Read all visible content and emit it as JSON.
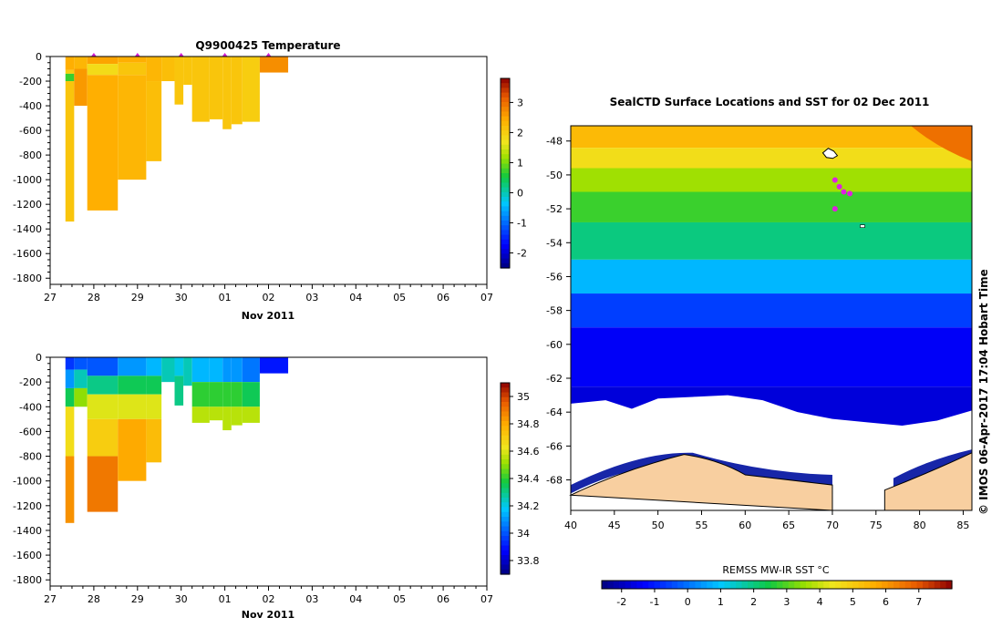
{
  "chart_data": [
    {
      "type": "heatmap",
      "title": "Q9900425  Temperature",
      "xlabel": "Nov 2011",
      "ylabel": "",
      "x_tick_labels": [
        "27",
        "28",
        "29",
        "30",
        "01",
        "02",
        "03",
        "04",
        "05",
        "06",
        "07"
      ],
      "y_tick_values": [
        0,
        -200,
        -400,
        -600,
        -800,
        -1000,
        -1200,
        -1400,
        -1600,
        -1800
      ],
      "xlim_days": [
        0,
        10
      ],
      "ylim": [
        -1850,
        0
      ],
      "colorbar": {
        "ticks": [
          3,
          2,
          1,
          0,
          -1,
          -2
        ],
        "range": [
          -2.5,
          3.8
        ]
      },
      "profile_markers_days": [
        1.0,
        2.0,
        3.0,
        4.0,
        5.0
      ],
      "columns": [
        {
          "x0": 0.35,
          "x1": 0.55,
          "bottom": -1340,
          "bands": [
            [
              0,
              -110,
              2.4
            ],
            [
              -110,
              -140,
              2.0
            ],
            [
              -140,
              -200,
              0.7
            ],
            [
              -200,
              -1340,
              2.1
            ]
          ]
        },
        {
          "x0": 0.55,
          "x1": 0.85,
          "bottom": -400,
          "bands": [
            [
              0,
              -100,
              2.3
            ],
            [
              -100,
              -400,
              2.6
            ]
          ]
        },
        {
          "x0": 0.85,
          "x1": 1.55,
          "bottom": -1250,
          "bands": [
            [
              0,
              -60,
              2.5
            ],
            [
              -60,
              -150,
              1.8
            ],
            [
              -150,
              -1250,
              2.4
            ]
          ]
        },
        {
          "x0": 1.55,
          "x1": 2.2,
          "bottom": -1000,
          "bands": [
            [
              0,
              -50,
              2.4
            ],
            [
              -50,
              -150,
              2.1
            ],
            [
              -150,
              -1000,
              2.3
            ]
          ]
        },
        {
          "x0": 2.2,
          "x1": 2.55,
          "bottom": -850,
          "bands": [
            [
              0,
              -200,
              2.3
            ],
            [
              -200,
              -850,
              2.2
            ]
          ]
        },
        {
          "x0": 2.55,
          "x1": 2.85,
          "bottom": -200,
          "bands": [
            [
              0,
              -200,
              2.2
            ]
          ]
        },
        {
          "x0": 2.85,
          "x1": 3.05,
          "bottom": -390,
          "bands": [
            [
              0,
              -390,
              2.1
            ]
          ]
        },
        {
          "x0": 3.05,
          "x1": 3.25,
          "bottom": -230,
          "bands": [
            [
              0,
              -230,
              2.1
            ]
          ]
        },
        {
          "x0": 3.25,
          "x1": 3.65,
          "bottom": -530,
          "bands": [
            [
              0,
              -530,
              2.1
            ]
          ]
        },
        {
          "x0": 3.65,
          "x1": 3.95,
          "bottom": -510,
          "bands": [
            [
              0,
              -510,
              2.1
            ]
          ]
        },
        {
          "x0": 3.95,
          "x1": 4.15,
          "bottom": -590,
          "bands": [
            [
              0,
              -590,
              2.1
            ]
          ]
        },
        {
          "x0": 4.15,
          "x1": 4.4,
          "bottom": -550,
          "bands": [
            [
              0,
              -550,
              2.1
            ]
          ]
        },
        {
          "x0": 4.4,
          "x1": 4.8,
          "bottom": -530,
          "bands": [
            [
              0,
              -530,
              2.0
            ]
          ]
        },
        {
          "x0": 4.8,
          "x1": 5.45,
          "bottom": -130,
          "bands": [
            [
              0,
              -130,
              2.7
            ]
          ]
        }
      ]
    },
    {
      "type": "heatmap",
      "title": "",
      "xlabel": "Nov 2011",
      "ylabel": "",
      "x_tick_labels": [
        "27",
        "28",
        "29",
        "30",
        "01",
        "02",
        "03",
        "04",
        "05",
        "06",
        "07"
      ],
      "y_tick_values": [
        0,
        -200,
        -400,
        -600,
        -800,
        -1000,
        -1200,
        -1400,
        -1600,
        -1800
      ],
      "xlim_days": [
        0,
        10
      ],
      "ylim": [
        -1850,
        0
      ],
      "colorbar": {
        "ticks": [
          35,
          34.8,
          34.6,
          34.4,
          34.2,
          34,
          33.8
        ],
        "range": [
          33.7,
          35.1
        ]
      },
      "columns": [
        {
          "x0": 0.35,
          "x1": 0.55,
          "bottom": -1340,
          "bands": [
            [
              0,
              -100,
              33.95
            ],
            [
              -100,
              -250,
              34.1
            ],
            [
              -250,
              -400,
              34.35
            ],
            [
              -400,
              -800,
              34.65
            ],
            [
              -800,
              -1340,
              34.85
            ]
          ]
        },
        {
          "x0": 0.55,
          "x1": 0.85,
          "bottom": -400,
          "bands": [
            [
              0,
              -100,
              34.0
            ],
            [
              -100,
              -250,
              34.25
            ],
            [
              -250,
              -400,
              34.5
            ]
          ]
        },
        {
          "x0": 0.85,
          "x1": 1.55,
          "bottom": -1250,
          "bands": [
            [
              0,
              -150,
              34.0
            ],
            [
              -150,
              -300,
              34.3
            ],
            [
              -300,
              -500,
              34.6
            ],
            [
              -500,
              -800,
              34.7
            ],
            [
              -800,
              -1250,
              34.9
            ]
          ]
        },
        {
          "x0": 1.55,
          "x1": 2.2,
          "bottom": -1000,
          "bands": [
            [
              0,
              -150,
              34.1
            ],
            [
              -150,
              -300,
              34.35
            ],
            [
              -300,
              -500,
              34.6
            ],
            [
              -500,
              -1000,
              34.8
            ]
          ]
        },
        {
          "x0": 2.2,
          "x1": 2.55,
          "bottom": -850,
          "bands": [
            [
              0,
              -150,
              34.15
            ],
            [
              -150,
              -300,
              34.35
            ],
            [
              -300,
              -500,
              34.6
            ],
            [
              -500,
              -850,
              34.75
            ]
          ]
        },
        {
          "x0": 2.55,
          "x1": 2.85,
          "bottom": -200,
          "bands": [
            [
              0,
              -200,
              34.25
            ]
          ]
        },
        {
          "x0": 2.85,
          "x1": 3.05,
          "bottom": -390,
          "bands": [
            [
              0,
              -150,
              34.2
            ],
            [
              -150,
              -390,
              34.3
            ]
          ]
        },
        {
          "x0": 3.05,
          "x1": 3.25,
          "bottom": -230,
          "bands": [
            [
              0,
              -230,
              34.25
            ]
          ]
        },
        {
          "x0": 3.25,
          "x1": 3.65,
          "bottom": -530,
          "bands": [
            [
              0,
              -200,
              34.15
            ],
            [
              -200,
              -400,
              34.4
            ],
            [
              -400,
              -530,
              34.55
            ]
          ]
        },
        {
          "x0": 3.65,
          "x1": 3.95,
          "bottom": -510,
          "bands": [
            [
              0,
              -200,
              34.15
            ],
            [
              -200,
              -400,
              34.4
            ],
            [
              -400,
              -510,
              34.55
            ]
          ]
        },
        {
          "x0": 3.95,
          "x1": 4.15,
          "bottom": -590,
          "bands": [
            [
              0,
              -200,
              34.1
            ],
            [
              -200,
              -400,
              34.4
            ],
            [
              -400,
              -590,
              34.55
            ]
          ]
        },
        {
          "x0": 4.15,
          "x1": 4.4,
          "bottom": -550,
          "bands": [
            [
              0,
              -200,
              34.1
            ],
            [
              -200,
              -400,
              34.4
            ],
            [
              -400,
              -550,
              34.55
            ]
          ]
        },
        {
          "x0": 4.4,
          "x1": 4.8,
          "bottom": -530,
          "bands": [
            [
              0,
              -200,
              34.05
            ],
            [
              -200,
              -400,
              34.35
            ],
            [
              -400,
              -530,
              34.55
            ]
          ]
        },
        {
          "x0": 4.8,
          "x1": 5.45,
          "bottom": -130,
          "bands": [
            [
              0,
              -130,
              33.9
            ]
          ]
        }
      ]
    },
    {
      "type": "heatmap",
      "title": "SealCTD Surface Locations and SST for 02 Dec 2011",
      "xlabel": "",
      "ylabel": "",
      "xlim": [
        40,
        86
      ],
      "ylim": [
        -69.8,
        -47.1
      ],
      "x_tick_values": [
        40,
        45,
        50,
        55,
        60,
        65,
        70,
        75,
        80,
        85
      ],
      "y_tick_values": [
        -48,
        -50,
        -52,
        -54,
        -56,
        -58,
        -60,
        -62,
        -64,
        -66,
        -68
      ],
      "colorbar": {
        "label": "REMSS MW-IR SST °C",
        "ticks": [
          -2,
          -1,
          0,
          1,
          2,
          3,
          4,
          5,
          6,
          7
        ],
        "range": [
          -2.6,
          8.0
        ]
      },
      "sst_bands": [
        {
          "lat_top": -47.1,
          "lat_bottom": -48.4,
          "sst": 5.4
        },
        {
          "lat_top": -48.4,
          "lat_bottom": -49.6,
          "sst": 4.6
        },
        {
          "lat_top": -49.6,
          "lat_bottom": -51.0,
          "sst": 3.6
        },
        {
          "lat_top": -51.0,
          "lat_bottom": -52.8,
          "sst": 2.8
        },
        {
          "lat_top": -52.8,
          "lat_bottom": -55.0,
          "sst": 2.0
        },
        {
          "lat_top": -55.0,
          "lat_bottom": -57.0,
          "sst": 0.8
        },
        {
          "lat_top": -57.0,
          "lat_bottom": -59.0,
          "sst": -0.6
        },
        {
          "lat_top": -59.0,
          "lat_bottom": -62.5,
          "sst": -1.4
        },
        {
          "lat_top": -62.5,
          "lat_bottom": -65.8,
          "sst": -1.7
        }
      ],
      "seal_surface_locations": [
        {
          "lon": 70.3,
          "lat": -50.3
        },
        {
          "lon": 70.8,
          "lat": -50.7
        },
        {
          "lon": 71.3,
          "lat": -51.0
        },
        {
          "lon": 72.0,
          "lat": -51.1
        },
        {
          "lon": 70.3,
          "lat": -52.0
        }
      ]
    }
  ],
  "copyright": "© IMOS 06-Apr-2017 17:04 Hobart Time"
}
